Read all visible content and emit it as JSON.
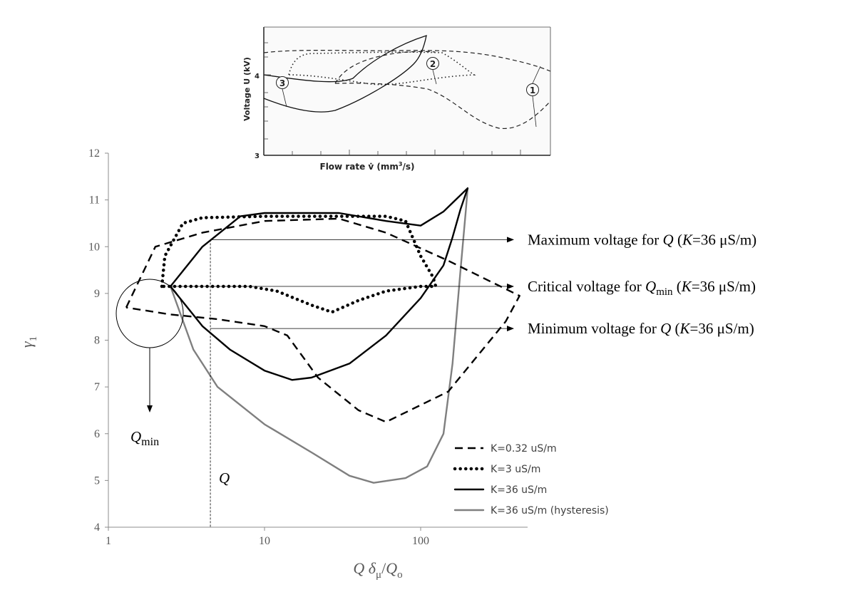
{
  "chart_data": [
    {
      "type": "line",
      "title": "",
      "xscale": "log",
      "xlim": [
        1,
        450
      ],
      "ylim": [
        4,
        12
      ],
      "xticks": [
        1,
        10,
        100
      ],
      "yticks": [
        4,
        5,
        6,
        7,
        8,
        9,
        10,
        11,
        12
      ],
      "xlabel": {
        "q": "Q",
        "delta": "δ",
        "mu": "μ",
        "slash": "/",
        "q2": "Q",
        "o": "o"
      },
      "ylabel": {
        "gamma": "γ",
        "sub": "1"
      },
      "grid": false,
      "legend_position": "bottom-right",
      "series": [
        {
          "name": "K=0.32 uS/m",
          "style": "dashed",
          "color": "#000000",
          "points": [
            [
              1.3,
              8.7
            ],
            [
              2,
              10.0
            ],
            [
              4,
              10.3
            ],
            [
              10,
              10.55
            ],
            [
              30,
              10.6
            ],
            [
              60,
              10.3
            ],
            [
              150,
              9.7
            ],
            [
              430,
              8.95
            ],
            [
              350,
              8.4
            ],
            [
              150,
              6.9
            ],
            [
              60,
              6.25
            ],
            [
              40,
              6.5
            ],
            [
              22,
              7.2
            ],
            [
              14,
              8.1
            ],
            [
              10,
              8.3
            ],
            [
              5,
              8.45
            ],
            [
              2.5,
              8.55
            ],
            [
              1.3,
              8.7
            ]
          ]
        },
        {
          "name": "K=3 uS/m",
          "style": "dotted",
          "color": "#000000",
          "points": [
            [
              2.2,
              9.15
            ],
            [
              2.3,
              9.8
            ],
            [
              3,
              10.5
            ],
            [
              4,
              10.62
            ],
            [
              10,
              10.65
            ],
            [
              30,
              10.65
            ],
            [
              60,
              10.65
            ],
            [
              80,
              10.55
            ],
            [
              100,
              9.8
            ],
            [
              120,
              9.35
            ],
            [
              125,
              9.15
            ],
            [
              100,
              9.15
            ],
            [
              60,
              9.05
            ],
            [
              40,
              8.85
            ],
            [
              27,
              8.6
            ],
            [
              20,
              8.75
            ],
            [
              12,
              9.05
            ],
            [
              8,
              9.15
            ],
            [
              4,
              9.15
            ],
            [
              2.2,
              9.15
            ]
          ]
        },
        {
          "name": "K=36 uS/m",
          "style": "solid",
          "color": "#000000",
          "points": [
            [
              2.5,
              9.15
            ],
            [
              4,
              10.0
            ],
            [
              7,
              10.65
            ],
            [
              10,
              10.72
            ],
            [
              20,
              10.72
            ],
            [
              30,
              10.72
            ],
            [
              60,
              10.55
            ],
            [
              100,
              10.45
            ],
            [
              140,
              10.75
            ],
            [
              200,
              11.25
            ],
            [
              180,
              10.8
            ],
            [
              160,
              10.2
            ],
            [
              140,
              9.6
            ],
            [
              100,
              8.9
            ],
            [
              60,
              8.1
            ],
            [
              35,
              7.5
            ],
            [
              20,
              7.2
            ],
            [
              15,
              7.15
            ],
            [
              10,
              7.35
            ],
            [
              6,
              7.8
            ],
            [
              4,
              8.3
            ],
            [
              2.5,
              9.15
            ]
          ]
        },
        {
          "name": "K=36 uS/m (hysteresis)",
          "style": "solid",
          "color": "#7f7f7f",
          "points": [
            [
              2.5,
              9.15
            ],
            [
              3.5,
              7.8
            ],
            [
              5,
              7.0
            ],
            [
              10,
              6.2
            ],
            [
              20,
              5.6
            ],
            [
              35,
              5.1
            ],
            [
              50,
              4.95
            ],
            [
              80,
              5.05
            ],
            [
              110,
              5.3
            ],
            [
              140,
              6.0
            ],
            [
              160,
              7.5
            ],
            [
              180,
              9.5
            ],
            [
              195,
              10.8
            ],
            [
              200,
              11.25
            ]
          ]
        }
      ],
      "annotations": {
        "max": {
          "prefix": "Maximum voltage for ",
          "q": "Q",
          "open": " (",
          "k": "K",
          "rest": "=36 μS/m)"
        },
        "crit": {
          "prefix": "Critical voltage for ",
          "q": "Q",
          "sub": "min",
          "open": " (",
          "k": "K",
          "rest": "=36 μS/m)"
        },
        "min": {
          "prefix": "Minimum voltage for ",
          "q": "Q",
          "open": " (",
          "k": "K",
          "rest": "=36 μS/m)"
        },
        "qmin": {
          "q": "Q",
          "sub": "min"
        },
        "q_marker": "Q"
      },
      "annotation_levels": {
        "max": 10.15,
        "crit": 9.15,
        "min": 8.25,
        "q_marker_x": 4.5
      }
    },
    {
      "type": "line",
      "title": "",
      "xlabel": {
        "text": "Flow rate ",
        "vdot": "v̇",
        "open": " (mm",
        "sup": "3",
        "close": "/s)"
      },
      "ylabel": {
        "text": "Voltage  U  (kV)"
      },
      "yticks": [
        "3",
        "4"
      ],
      "curve_labels": [
        "3",
        "2",
        "1"
      ]
    }
  ]
}
